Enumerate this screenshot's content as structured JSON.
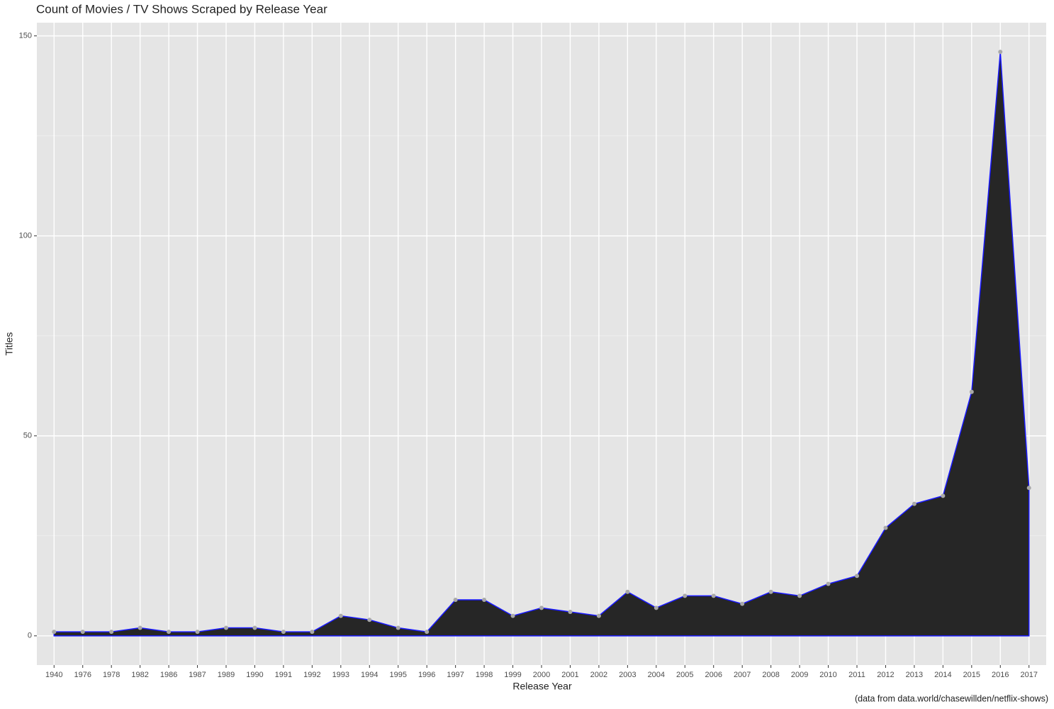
{
  "chart_data": {
    "type": "area",
    "title": "Count of Movies / TV Shows Scraped by Release Year",
    "x_label": "Release Year",
    "y_label": "Titles",
    "caption": "(data from data.world/chasewillden/netflix-shows)",
    "categories": [
      "1940",
      "1976",
      "1978",
      "1982",
      "1986",
      "1987",
      "1989",
      "1990",
      "1991",
      "1992",
      "1993",
      "1994",
      "1995",
      "1996",
      "1997",
      "1998",
      "1999",
      "2000",
      "2001",
      "2002",
      "2003",
      "2004",
      "2005",
      "2006",
      "2007",
      "2008",
      "2009",
      "2010",
      "2011",
      "2012",
      "2013",
      "2014",
      "2015",
      "2016",
      "2017"
    ],
    "values": [
      1,
      1,
      1,
      2,
      1,
      1,
      2,
      2,
      1,
      1,
      5,
      4,
      2,
      1,
      9,
      9,
      5,
      7,
      6,
      5,
      11,
      7,
      10,
      10,
      8,
      11,
      10,
      13,
      15,
      27,
      33,
      35,
      61,
      146,
      37
    ],
    "fill_color": "#262626",
    "line_color": "#1a1aff",
    "point_color": "#a9a9a9",
    "ylim": [
      -7.3,
      153.3
    ],
    "yticks": [
      0,
      50,
      100,
      150
    ],
    "minor_yticks": [
      25,
      75,
      125
    ],
    "grid": true
  }
}
